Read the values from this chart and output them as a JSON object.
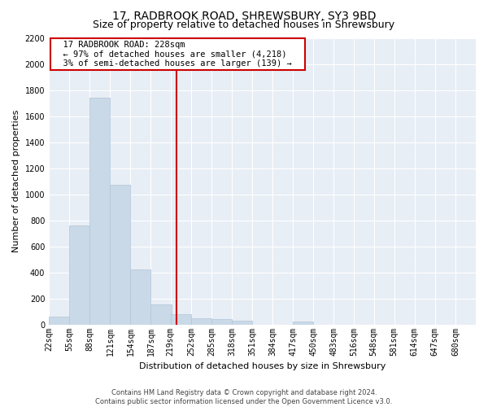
{
  "title": "17, RADBROOK ROAD, SHREWSBURY, SY3 9BD",
  "subtitle": "Size of property relative to detached houses in Shrewsbury",
  "xlabel": "Distribution of detached houses by size in Shrewsbury",
  "ylabel": "Number of detached properties",
  "footer_line1": "Contains HM Land Registry data © Crown copyright and database right 2024.",
  "footer_line2": "Contains public sector information licensed under the Open Government Licence v3.0.",
  "annotation_line1": "17 RADBROOK ROAD: 228sqm",
  "annotation_line2": "← 97% of detached houses are smaller (4,218)",
  "annotation_line3": "3% of semi-detached houses are larger (139) →",
  "property_size": 228,
  "bin_edges": [
    22,
    55,
    88,
    121,
    154,
    187,
    219,
    252,
    285,
    318,
    351,
    384,
    417,
    450,
    483,
    516,
    548,
    581,
    614,
    647,
    680
  ],
  "values": [
    60,
    760,
    1740,
    1070,
    420,
    155,
    80,
    48,
    40,
    30,
    0,
    0,
    20,
    0,
    0,
    0,
    0,
    0,
    0,
    0
  ],
  "bar_color": "#c9d9e8",
  "bar_edge_color": "#b0c4d8",
  "vline_color": "#cc0000",
  "annotation_box_edgecolor": "#cc0000",
  "background_color": "#e8eef5",
  "grid_color": "#ffffff",
  "ylim": [
    0,
    2200
  ],
  "yticks": [
    0,
    200,
    400,
    600,
    800,
    1000,
    1200,
    1400,
    1600,
    1800,
    2000,
    2200
  ],
  "title_fontsize": 10,
  "subtitle_fontsize": 9,
  "ylabel_fontsize": 8,
  "xlabel_fontsize": 8,
  "tick_fontsize": 7,
  "footer_fontsize": 6,
  "annotation_fontsize": 7.5
}
